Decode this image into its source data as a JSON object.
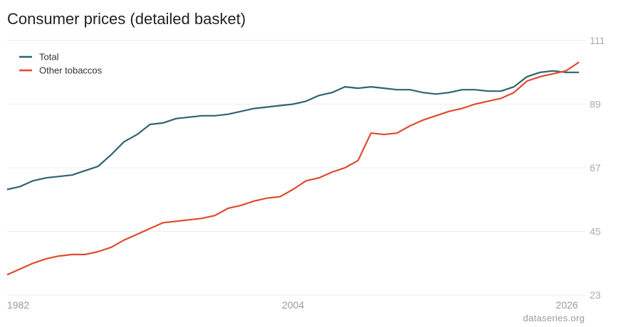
{
  "title": "Consumer prices (detailed basket)",
  "source": "dataseries.org",
  "colors": {
    "total": "#2e6470",
    "other_tobaccos": "#e04a2f",
    "grid": "#ececec"
  },
  "chart_data": {
    "type": "line",
    "title": "Consumer prices (detailed basket)",
    "xlabel": "",
    "ylabel": "",
    "xlim": [
      1982,
      2026.5
    ],
    "ylim": [
      23,
      111
    ],
    "yticks": [
      111,
      89,
      67,
      45,
      23
    ],
    "xticks": [
      1982,
      2004,
      2026
    ],
    "grid": true,
    "legend_position": "top-left",
    "series": [
      {
        "name": "Total",
        "color": "#2e6470",
        "x": [
          1982,
          1983,
          1984,
          1985,
          1986,
          1987,
          1988,
          1989,
          1990,
          1991,
          1992,
          1993,
          1994,
          1995,
          1996,
          1997,
          1998,
          1999,
          2000,
          2001,
          2002,
          2003,
          2004,
          2005,
          2006,
          2007,
          2008,
          2009,
          2010,
          2011,
          2012,
          2013,
          2014,
          2015,
          2016,
          2017,
          2018,
          2019,
          2020,
          2021,
          2022,
          2023,
          2024,
          2025,
          2026
        ],
        "values": [
          59.5,
          60.5,
          62.5,
          63.5,
          64,
          64.5,
          66,
          67.5,
          71.5,
          76,
          78.5,
          82,
          82.5,
          84,
          84.5,
          85,
          85,
          85.5,
          86.5,
          87.5,
          88,
          88.5,
          89,
          90,
          92,
          93,
          95,
          94.5,
          95,
          94.5,
          94,
          94,
          93,
          92.5,
          93,
          94,
          94,
          93.5,
          93.5,
          95,
          98.5,
          100,
          100.5,
          100,
          100
        ]
      },
      {
        "name": "Other tobaccos",
        "color": "#e04a2f",
        "x": [
          1982,
          1983,
          1984,
          1985,
          1986,
          1987,
          1988,
          1989,
          1990,
          1991,
          1992,
          1993,
          1994,
          1995,
          1996,
          1997,
          1998,
          1999,
          2000,
          2001,
          2002,
          2003,
          2004,
          2005,
          2006,
          2007,
          2008,
          2009,
          2010,
          2011,
          2012,
          2013,
          2014,
          2015,
          2016,
          2017,
          2018,
          2019,
          2020,
          2021,
          2022,
          2023,
          2024,
          2025,
          2026
        ],
        "values": [
          30,
          32,
          34,
          35.5,
          36.5,
          37,
          37,
          38,
          39.5,
          42,
          44,
          46,
          48,
          48.5,
          49,
          49.5,
          50.5,
          53,
          54,
          55.5,
          56.5,
          57,
          59.5,
          62.5,
          63.5,
          65.5,
          67,
          69.5,
          79,
          78.5,
          79,
          81.5,
          83.5,
          85,
          86.5,
          87.5,
          89,
          90,
          91,
          93,
          97,
          98.5,
          99.5,
          100.5,
          103.5
        ]
      }
    ]
  }
}
